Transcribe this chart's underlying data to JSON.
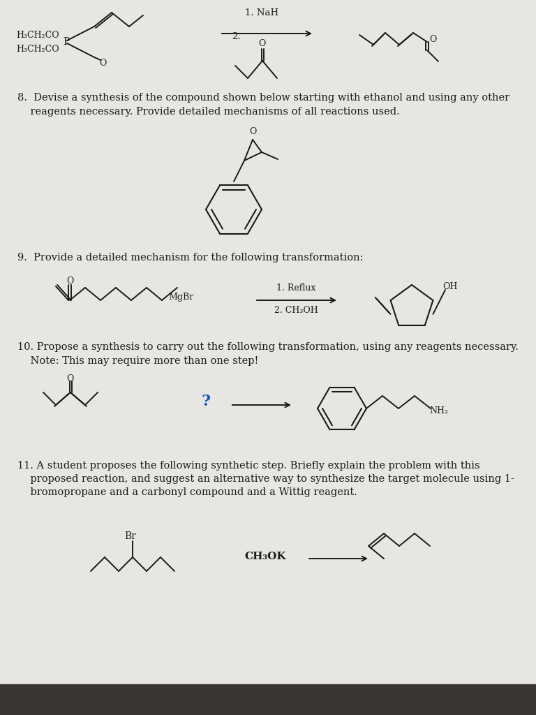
{
  "bg_color": "#e8e6e2",
  "tc": "#1a1a1a",
  "q8_line1": "8.  Devise a synthesis of the compound shown below starting with ethanol and using any other",
  "q8_line2": "    reagents necessary. Provide detailed mechanisms of all reactions used.",
  "q9_line1": "9.  Provide a detailed mechanism for the following transformation:",
  "q10_line1": "10. Propose a synthesis to carry out the following transformation, using any reagents necessary.",
  "q10_line2": "    Note: This may require more than one step!",
  "q11_line1": "11. A student proposes the following synthetic step. Briefly explain the problem with this",
  "q11_line2": "    proposed reaction, and suggest an alternative way to synthesize the target molecule using 1-",
  "q11_line3": "    bromopropane and a carbonyl compound and a Wittig reagent.",
  "lbl_NaH": "1. NaH",
  "lbl_2": "2.",
  "lbl_reflux": "1. Reflux",
  "lbl_ch3oh": "2. CH₃OH",
  "lbl_MgBr": "MgBr",
  "lbl_CH3OK": "CH₃OK",
  "lbl_NH2": "NH₂",
  "lbl_Br": "Br",
  "lbl_q": "?",
  "lbl_OH": "OH",
  "lbl_O": "O",
  "lbl_H3CH2CO_top": "H₃CH₂CO",
  "lbl_H3CH2CO_bot": "H₃CH₂CO"
}
